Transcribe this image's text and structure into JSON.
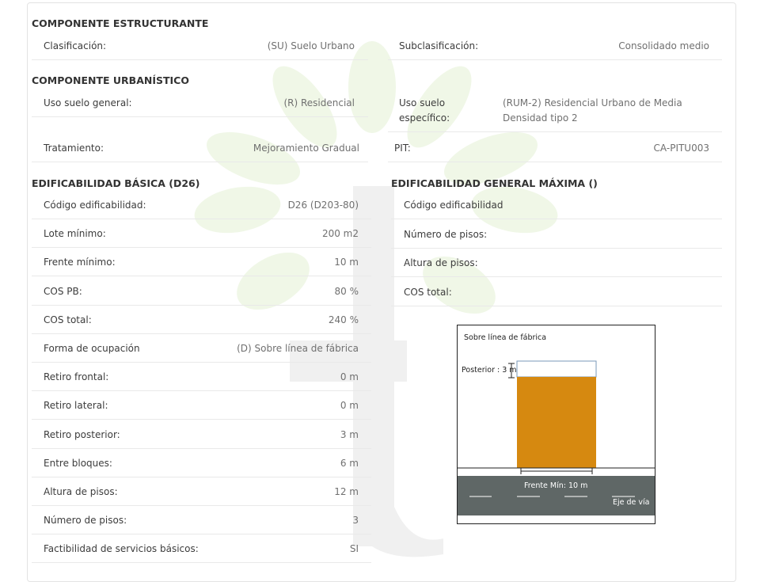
{
  "sections": {
    "estructurante": {
      "title": "COMPONENTE ESTRUCTURANTE"
    },
    "urbanistico": {
      "title": "COMPONENTE URBANÍSTICO"
    },
    "basica": {
      "title": "EDIFICABILIDAD BÁSICA (D26)"
    },
    "maxima": {
      "title": "EDIFICABILIDAD GENERAL MÁXIMA ()"
    }
  },
  "estructurante": {
    "clasificacion": {
      "label": "Clasificación:",
      "value": "(SU) Suelo Urbano"
    },
    "subclasificacion": {
      "label": "Subclasificación:",
      "value": "Consolidado medio"
    }
  },
  "urbanistico": {
    "uso_general": {
      "label": "Uso suelo general:",
      "value": "(R) Residencial"
    },
    "uso_especifico": {
      "label_line1": "Uso suelo",
      "label_line2": "específico:",
      "value_line1": "(RUM-2) Residencial Urbano de Media",
      "value_line2": "Densidad tipo 2"
    },
    "tratamiento": {
      "label": "Tratamiento:",
      "value": "Mejoramiento Gradual"
    },
    "pit": {
      "label": "PIT:",
      "value": "CA-PITU003"
    }
  },
  "basica": [
    {
      "label": "Código edificabilidad:",
      "value": "D26 (D203-80)"
    },
    {
      "label": "Lote mínimo:",
      "value": "200 m2"
    },
    {
      "label": "Frente mínimo:",
      "value": "10 m"
    },
    {
      "label": "COS PB:",
      "value": "80 %"
    },
    {
      "label": "COS total:",
      "value": "240 %"
    },
    {
      "label": "Forma de ocupación",
      "value": "(D) Sobre línea de fábrica"
    },
    {
      "label": "Retiro frontal:",
      "value": "0 m"
    },
    {
      "label": "Retiro lateral:",
      "value": "0 m"
    },
    {
      "label": "Retiro posterior:",
      "value": "3 m"
    },
    {
      "label": "Entre bloques:",
      "value": "6 m"
    },
    {
      "label": "Altura de pisos:",
      "value": "12 m"
    },
    {
      "label": "Número de pisos:",
      "value": "3"
    },
    {
      "label": "Factibilidad de servicios básicos:",
      "value": "SI"
    }
  ],
  "maxima": [
    {
      "label": "Código edificabilidad"
    },
    {
      "label": "Número de pisos:"
    },
    {
      "label": "Altura de pisos:"
    },
    {
      "label": "COS total:"
    }
  ],
  "diagram": {
    "title": "Sobre línea de fábrica",
    "posterior": "Posterior : 3 m",
    "frente": "Frente Mín: 10 m",
    "eje": "Eje de vía",
    "building_color": "#d68910",
    "road_color": "#5f6766"
  }
}
